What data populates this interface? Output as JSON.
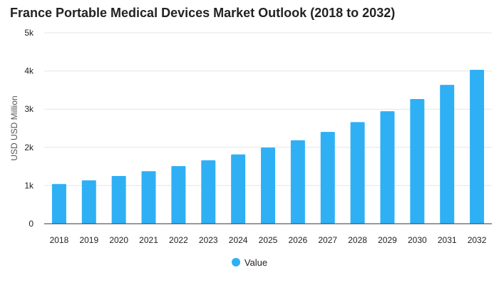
{
  "chart_data": {
    "type": "bar",
    "title": "France Portable Medical Devices Market Outlook (2018 to 2032)",
    "xlabel": "",
    "ylabel": "USD USD Million",
    "categories": [
      "2018",
      "2019",
      "2020",
      "2021",
      "2022",
      "2023",
      "2024",
      "2025",
      "2026",
      "2027",
      "2028",
      "2029",
      "2030",
      "2031",
      "2032"
    ],
    "series": [
      {
        "name": "Value",
        "values": [
          1040,
          1135,
          1250,
          1375,
          1510,
          1660,
          1815,
          1995,
          2185,
          2405,
          2660,
          2945,
          3265,
          3635,
          4030
        ]
      }
    ],
    "ylim": [
      0,
      5000
    ],
    "yticks": [
      0,
      1000,
      2000,
      3000,
      4000,
      5000
    ],
    "ytick_labels": [
      "0",
      "1k",
      "2k",
      "3k",
      "4k",
      "5k"
    ],
    "grid": true,
    "legend": "bottom-center",
    "colors": {
      "bar": "#2fb0f5",
      "grid": "#e6e6e6",
      "axis": "#333333"
    }
  }
}
